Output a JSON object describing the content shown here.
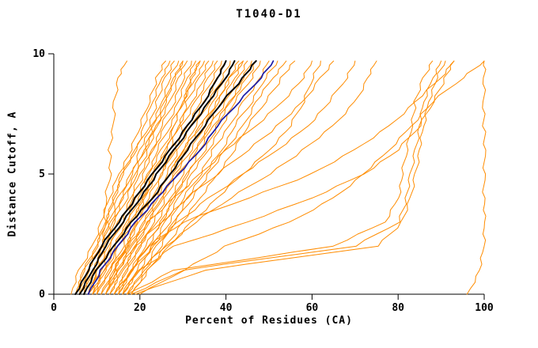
{
  "chart_data": {
    "type": "line",
    "title": "T1040-D1",
    "xlabel": "Percent of Residues (CA)",
    "ylabel": "Distance Cutoff, A",
    "xlim": [
      0,
      100
    ],
    "ylim": [
      0,
      10
    ],
    "xticks": [
      0,
      20,
      40,
      60,
      80,
      100
    ],
    "yticks": [
      0,
      5,
      10
    ],
    "grid": false,
    "legend": "none",
    "colors": {
      "o": "#ff8c00",
      "b": "#1a1aa6",
      "k": "#000000"
    },
    "cutoffs": [
      0,
      1,
      2,
      3,
      4,
      5,
      6,
      7,
      8,
      9,
      9.7
    ],
    "series": [
      {
        "g": "o",
        "x": [
          4,
          6,
          9,
          11,
          13,
          15,
          18,
          20,
          22,
          24,
          26
        ]
      },
      {
        "g": "o",
        "x": [
          5,
          7,
          10,
          12,
          14,
          16,
          19,
          21,
          23,
          25,
          27
        ]
      },
      {
        "g": "o",
        "x": [
          5,
          7,
          10,
          12,
          14,
          16,
          19,
          22,
          24,
          26,
          28
        ]
      },
      {
        "g": "o",
        "x": [
          6,
          8,
          11,
          13,
          15,
          18,
          20,
          23,
          25,
          27,
          29
        ]
      },
      {
        "g": "o",
        "x": [
          6,
          8,
          11,
          13,
          16,
          18,
          21,
          23,
          26,
          28,
          30
        ]
      },
      {
        "g": "o",
        "x": [
          7,
          9,
          12,
          14,
          16,
          19,
          21,
          24,
          26,
          28,
          30
        ]
      },
      {
        "g": "o",
        "x": [
          7,
          9,
          12,
          14,
          17,
          19,
          22,
          24,
          27,
          29,
          31
        ]
      },
      {
        "g": "o",
        "x": [
          8,
          10,
          13,
          15,
          18,
          20,
          23,
          25,
          28,
          30,
          32
        ]
      },
      {
        "g": "o",
        "x": [
          8,
          11,
          13,
          16,
          18,
          21,
          23,
          26,
          29,
          31,
          33
        ]
      },
      {
        "g": "o",
        "x": [
          9,
          12,
          14,
          17,
          19,
          22,
          24,
          27,
          30,
          32,
          34
        ]
      },
      {
        "g": "o",
        "x": [
          9,
          12,
          14,
          17,
          20,
          22,
          25,
          28,
          30,
          33,
          35
        ]
      },
      {
        "g": "o",
        "x": [
          10,
          13,
          15,
          18,
          21,
          23,
          26,
          29,
          31,
          34,
          36
        ]
      },
      {
        "g": "o",
        "x": [
          10,
          13,
          16,
          18,
          21,
          24,
          27,
          29,
          32,
          35,
          37
        ]
      },
      {
        "g": "o",
        "x": [
          11,
          14,
          17,
          19,
          22,
          25,
          28,
          30,
          33,
          36,
          38
        ]
      },
      {
        "g": "o",
        "x": [
          11,
          14,
          17,
          20,
          23,
          25,
          28,
          31,
          34,
          37,
          39
        ]
      },
      {
        "g": "o",
        "x": [
          12,
          15,
          18,
          21,
          24,
          26,
          29,
          32,
          35,
          38,
          40
        ]
      },
      {
        "g": "o",
        "x": [
          12,
          15,
          18,
          21,
          24,
          27,
          30,
          33,
          36,
          39,
          41
        ]
      },
      {
        "g": "o",
        "x": [
          13,
          16,
          19,
          22,
          25,
          28,
          31,
          34,
          37,
          40,
          42
        ]
      },
      {
        "g": "o",
        "x": [
          13,
          16,
          19,
          22,
          25,
          28,
          32,
          35,
          38,
          41,
          43
        ]
      },
      {
        "g": "o",
        "x": [
          14,
          17,
          20,
          23,
          26,
          29,
          33,
          36,
          39,
          42,
          44
        ]
      },
      {
        "g": "o",
        "x": [
          14,
          17,
          20,
          24,
          27,
          30,
          33,
          36,
          40,
          43,
          45
        ]
      },
      {
        "g": "o",
        "x": [
          15,
          18,
          21,
          25,
          28,
          31,
          34,
          37,
          41,
          44,
          46
        ]
      },
      {
        "g": "o",
        "x": [
          15,
          18,
          22,
          25,
          28,
          31,
          35,
          38,
          41,
          45,
          47
        ]
      },
      {
        "g": "o",
        "x": [
          16,
          19,
          23,
          26,
          29,
          32,
          36,
          39,
          42,
          46,
          48
        ]
      },
      {
        "g": "o",
        "x": [
          16,
          20,
          23,
          27,
          30,
          34,
          37,
          41,
          44,
          48,
          50
        ]
      },
      {
        "g": "o",
        "x": [
          17,
          21,
          24,
          28,
          31,
          35,
          39,
          42,
          46,
          49,
          52
        ]
      },
      {
        "g": "o",
        "x": [
          17,
          21,
          25,
          28,
          32,
          36,
          40,
          44,
          47,
          51,
          54
        ]
      },
      {
        "g": "o",
        "x": [
          18,
          22,
          26,
          30,
          34,
          38,
          42,
          45,
          49,
          53,
          56
        ]
      },
      {
        "g": "o",
        "x": [
          12,
          14,
          17,
          19,
          21,
          23,
          26,
          28,
          30,
          32,
          34
        ]
      },
      {
        "g": "o",
        "x": [
          8,
          12,
          15,
          19,
          23,
          27,
          30,
          34,
          38,
          41,
          44
        ]
      },
      {
        "g": "o",
        "x": [
          10,
          13,
          17,
          22,
          28,
          34,
          40,
          47,
          53,
          58,
          60
        ]
      },
      {
        "g": "o",
        "x": [
          12,
          15,
          19,
          25,
          31,
          38,
          45,
          52,
          58,
          62,
          65
        ]
      },
      {
        "g": "o",
        "x": [
          14,
          18,
          23,
          29,
          36,
          44,
          52,
          59,
          64,
          68,
          70
        ]
      },
      {
        "g": "o",
        "x": [
          16,
          20,
          26,
          33,
          41,
          50,
          58,
          65,
          70,
          73,
          75
        ]
      },
      {
        "g": "o",
        "x": [
          18,
          22,
          27,
          32,
          38,
          44,
          50,
          55,
          58,
          60,
          62
        ]
      },
      {
        "g": "o",
        "x": [
          15,
          18,
          22,
          30,
          45,
          60,
          70,
          78,
          84,
          90,
          93
        ]
      },
      {
        "g": "o",
        "x": [
          16,
          20,
          28,
          45,
          60,
          72,
          80,
          85,
          88,
          91,
          93
        ]
      },
      {
        "g": "o",
        "x": [
          18,
          30,
          70,
          80,
          82,
          83,
          84,
          85,
          86,
          88,
          90
        ]
      },
      {
        "g": "o",
        "x": [
          17,
          28,
          65,
          77,
          80,
          81,
          82,
          83,
          84,
          86,
          88
        ]
      },
      {
        "g": "o",
        "x": [
          19,
          35,
          75,
          81,
          83,
          84,
          85,
          86,
          87,
          89,
          91
        ]
      },
      {
        "g": "o",
        "x": [
          96,
          99,
          100,
          100,
          100,
          100,
          100,
          100,
          100,
          100,
          100
        ]
      },
      {
        "g": "o",
        "x": [
          20,
          30,
          40,
          55,
          65,
          72,
          78,
          83,
          88,
          95,
          100
        ]
      },
      {
        "g": "o",
        "x": [
          9,
          10,
          11,
          12,
          12,
          13,
          13,
          14,
          14,
          15,
          17
        ]
      },
      {
        "g": "b",
        "x": [
          8,
          11,
          15,
          19,
          24,
          29,
          34,
          38,
          43,
          48,
          51
        ]
      },
      {
        "g": "k",
        "x": [
          6,
          9,
          12,
          16,
          20,
          24,
          28,
          32,
          36,
          40,
          42
        ]
      },
      {
        "g": "k",
        "x": [
          7,
          10,
          14,
          18,
          23,
          27,
          31,
          35,
          39,
          44,
          47
        ]
      },
      {
        "g": "k",
        "x": [
          5,
          8,
          11,
          15,
          19,
          23,
          27,
          31,
          35,
          38,
          40
        ]
      }
    ]
  }
}
